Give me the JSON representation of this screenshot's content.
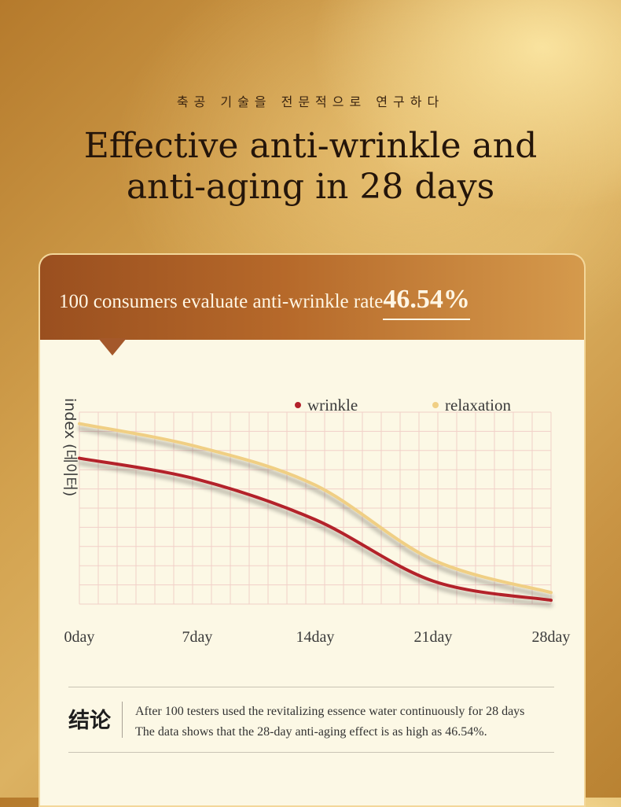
{
  "page": {
    "subtitle": "축공 기술을 전문적으로 연구하다",
    "headline_line1": "Effective anti-wrinkle and",
    "headline_line2": "anti-aging in 28 days"
  },
  "card": {
    "header_label": "100 consumers evaluate anti-wrinkle rate",
    "header_rate": "46.54%"
  },
  "chart_data": {
    "type": "line",
    "x": [
      "0day",
      "7day",
      "14day",
      "21day",
      "28day"
    ],
    "ylabel": "index (데이터)",
    "legend_position": "top-right",
    "grid": true,
    "ylim": [
      0,
      10
    ],
    "series": [
      {
        "name": "wrinkle",
        "color": "#b3212b",
        "values": [
          7.6,
          6.5,
          4.4,
          1.2,
          0.2
        ]
      },
      {
        "name": "relaxation",
        "color": "#f0cf84",
        "values": [
          9.4,
          8.2,
          6.2,
          2.3,
          0.6
        ]
      }
    ]
  },
  "conclusion": {
    "label": "结论",
    "line1": "After 100 testers used the revitalizing essence water continuously for 28 days",
    "line2": "The data shows that the 28-day anti-aging effect is as high as 46.54%."
  }
}
